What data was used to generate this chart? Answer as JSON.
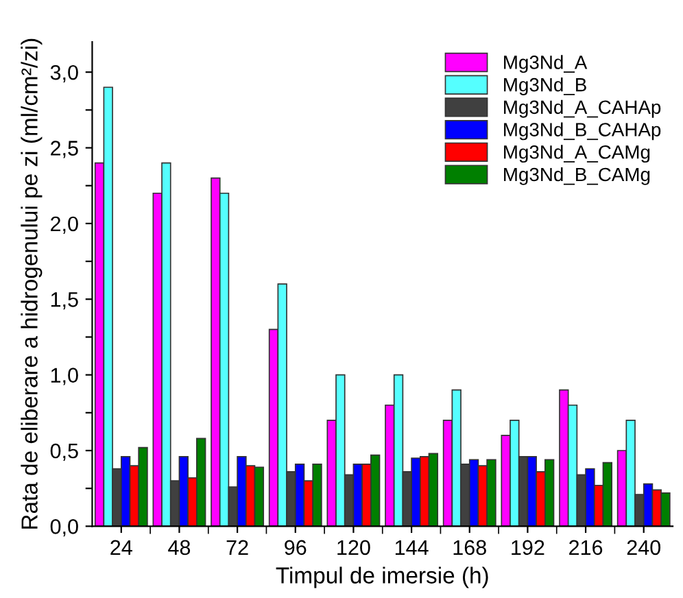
{
  "chart_data": {
    "type": "bar",
    "xlabel": "Timpul de imersie (h)",
    "ylabel": "Rata de eliberare a hidrogenului pe zi (ml/cm²/zi)",
    "categories": [
      "24",
      "48",
      "72",
      "96",
      "120",
      "144",
      "168",
      "192",
      "216",
      "240"
    ],
    "series": [
      {
        "name": "Mg3Nd_A",
        "color": "#ff00ff",
        "values": [
          2.4,
          2.2,
          2.3,
          1.3,
          0.7,
          0.8,
          0.7,
          0.6,
          0.9,
          0.5
        ]
      },
      {
        "name": "Mg3Nd_B",
        "color": "#55ffff",
        "values": [
          2.9,
          2.4,
          2.2,
          1.6,
          1.0,
          1.0,
          0.9,
          0.7,
          0.8,
          0.7
        ]
      },
      {
        "name": "Mg3Nd_A_CAHAp",
        "color": "#404040",
        "values": [
          0.38,
          0.3,
          0.26,
          0.36,
          0.34,
          0.36,
          0.41,
          0.46,
          0.34,
          0.21
        ]
      },
      {
        "name": "Mg3Nd_B_CAHAp",
        "color": "#0000ff",
        "values": [
          0.46,
          0.46,
          0.46,
          0.41,
          0.41,
          0.45,
          0.44,
          0.46,
          0.38,
          0.28
        ]
      },
      {
        "name": "Mg3Nd_A_CAMg",
        "color": "#ff0000",
        "values": [
          0.4,
          0.32,
          0.4,
          0.3,
          0.41,
          0.46,
          0.4,
          0.36,
          0.27,
          0.24
        ]
      },
      {
        "name": "Mg3Nd_B_CAMg",
        "color": "#007f00",
        "values": [
          0.52,
          0.58,
          0.39,
          0.41,
          0.47,
          0.48,
          0.44,
          0.44,
          0.42,
          0.22
        ]
      }
    ],
    "ylim": [
      0,
      3.2
    ],
    "yticks": [
      {
        "value": 0,
        "label": "0,0"
      },
      {
        "value": 0.25,
        "label": null
      },
      {
        "value": 0.5,
        "label": "0,5"
      },
      {
        "value": 0.75,
        "label": null
      },
      {
        "value": 1.0,
        "label": "1,0"
      },
      {
        "value": 1.25,
        "label": null
      },
      {
        "value": 1.5,
        "label": "1,5"
      },
      {
        "value": 1.75,
        "label": null
      },
      {
        "value": 2.0,
        "label": "2,0"
      },
      {
        "value": 2.25,
        "label": null
      },
      {
        "value": 2.5,
        "label": "2,5"
      },
      {
        "value": 2.75,
        "label": null
      },
      {
        "value": 3.0,
        "label": "3,0"
      }
    ],
    "grid": false,
    "legend": "top right"
  }
}
